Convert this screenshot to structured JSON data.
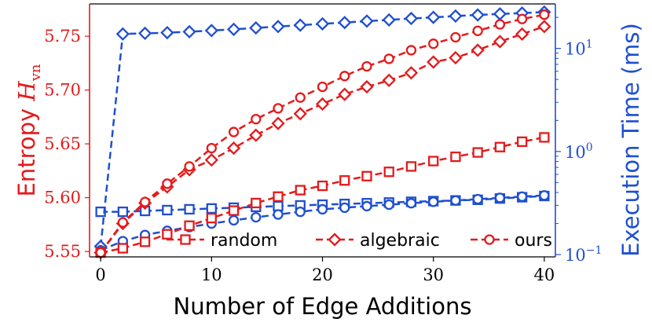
{
  "chart_data": {
    "type": "line",
    "title": "",
    "xlabel": "Number of Edge Additions",
    "ylabel_left": {
      "base": "Entropy ",
      "script": "H",
      "sub": "vn"
    },
    "ylabel_right": "Execution Time (ms)",
    "x_ticks": [
      0,
      10,
      20,
      30,
      40
    ],
    "xlim": [
      -1,
      41
    ],
    "y_left_ticks": [
      "5.55",
      "5.60",
      "5.65",
      "5.70",
      "5.75"
    ],
    "y_left_tick_values": [
      5.55,
      5.6,
      5.65,
      5.7,
      5.75
    ],
    "y_left_range": [
      5.545,
      5.78
    ],
    "y_right_scale": "log",
    "y_right_ticks": [
      {
        "value": 0.1,
        "base": "10",
        "exp": "−1"
      },
      {
        "value": 1,
        "base": "10",
        "exp": "0"
      },
      {
        "value": 10,
        "base": "10",
        "exp": "1"
      }
    ],
    "y_right_range": [
      0.095,
      27
    ],
    "left_axis_color": "#e41a1c",
    "right_axis_color": "#1f4fd1",
    "entropy_color": "#e41a1c",
    "time_color": "#1f4fd1",
    "legend": {
      "placement": "bottom-right",
      "entries": [
        "random",
        "algebraic",
        "ours"
      ],
      "markers": [
        "square",
        "diamond",
        "circle"
      ]
    },
    "x": [
      0,
      2,
      4,
      6,
      8,
      10,
      12,
      14,
      16,
      18,
      20,
      22,
      24,
      26,
      28,
      30,
      32,
      34,
      36,
      38,
      40
    ],
    "entropy_series": [
      {
        "name": "random",
        "marker": "square",
        "values": [
          5.549,
          5.553,
          5.559,
          5.566,
          5.574,
          5.581,
          5.588,
          5.595,
          5.601,
          5.607,
          5.611,
          5.616,
          5.62,
          5.624,
          5.629,
          5.634,
          5.638,
          5.642,
          5.647,
          5.652,
          5.656
        ]
      },
      {
        "name": "algebraic",
        "marker": "diamond",
        "values": [
          5.549,
          5.576,
          5.595,
          5.61,
          5.626,
          5.635,
          5.646,
          5.658,
          5.669,
          5.678,
          5.687,
          5.696,
          5.703,
          5.709,
          5.716,
          5.726,
          5.73,
          5.737,
          5.745,
          5.752,
          5.759
        ]
      },
      {
        "name": "ours",
        "marker": "circle",
        "values": [
          5.549,
          5.577,
          5.596,
          5.613,
          5.629,
          5.646,
          5.661,
          5.673,
          5.683,
          5.693,
          5.703,
          5.713,
          5.722,
          5.729,
          5.737,
          5.743,
          5.749,
          5.755,
          5.761,
          5.766,
          5.77
        ]
      }
    ],
    "time_series": [
      {
        "name": "random",
        "marker": "square",
        "values": [
          0.26,
          0.26,
          0.265,
          0.27,
          0.275,
          0.28,
          0.285,
          0.29,
          0.295,
          0.3,
          0.305,
          0.31,
          0.315,
          0.32,
          0.325,
          0.33,
          0.335,
          0.34,
          0.35,
          0.36,
          0.37
        ]
      },
      {
        "name": "algebraic",
        "marker": "diamond",
        "values": [
          0.12,
          13.8,
          14.0,
          14.2,
          14.5,
          14.9,
          15.3,
          15.8,
          16.3,
          16.8,
          17.3,
          17.8,
          18.4,
          18.9,
          19.5,
          20.0,
          20.6,
          21.1,
          21.6,
          22.0,
          22.5
        ]
      },
      {
        "name": "ours",
        "marker": "circle",
        "values": [
          0.11,
          0.135,
          0.155,
          0.17,
          0.185,
          0.2,
          0.215,
          0.23,
          0.245,
          0.26,
          0.275,
          0.285,
          0.295,
          0.305,
          0.315,
          0.325,
          0.335,
          0.345,
          0.355,
          0.365,
          0.375
        ]
      }
    ]
  }
}
